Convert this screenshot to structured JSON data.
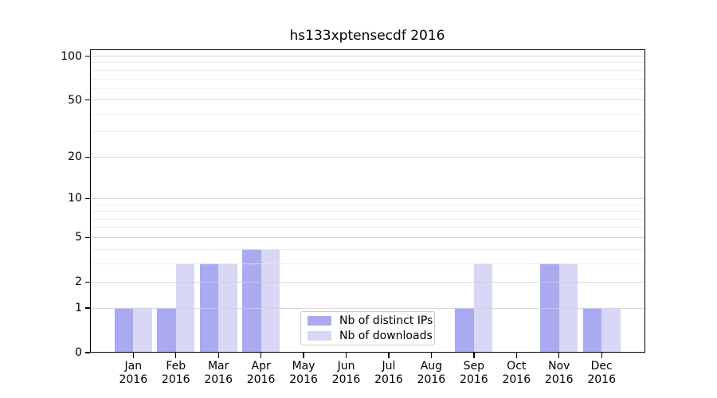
{
  "chart_data": {
    "type": "bar",
    "title": "hs133xptensecdf 2016",
    "x_categories": [
      "Jan 2016",
      "Feb 2016",
      "Mar 2016",
      "Apr 2016",
      "May 2016",
      "Jun 2016",
      "Jul 2016",
      "Aug 2016",
      "Sep 2016",
      "Oct 2016",
      "Nov 2016",
      "Dec 2016"
    ],
    "x_tick_top_labels": [
      "Jan",
      "Feb",
      "Mar",
      "Apr",
      "May",
      "Jun",
      "Jul",
      "Aug",
      "Sep",
      "Oct",
      "Nov",
      "Dec"
    ],
    "x_tick_bottom_label": "2016",
    "series": [
      {
        "name": "Nb of distinct IPs",
        "color": "#aaaaf0",
        "values": [
          1,
          1,
          3,
          4,
          0,
          0,
          0,
          0,
          1,
          0,
          3,
          1
        ]
      },
      {
        "name": "Nb of downloads",
        "color": "#d8d8f6",
        "values": [
          1,
          3,
          3,
          4,
          0,
          0,
          0,
          0,
          3,
          0,
          3,
          1
        ]
      }
    ],
    "y_axis": {
      "scale": "log1p",
      "major_ticks": [
        0,
        1,
        2,
        5,
        10,
        20,
        50,
        100
      ],
      "minor_gridlines": [
        3,
        4,
        6,
        7,
        8,
        9,
        30,
        40,
        60,
        70,
        80,
        90
      ],
      "ylim": [
        0,
        112
      ]
    },
    "legend": {
      "position": "lower center",
      "entries": [
        "Nb of distinct IPs",
        "Nb of downloads"
      ]
    },
    "grid": true,
    "colors": {
      "bar_distinct_ips": "#aaaaf0",
      "bar_downloads": "#d8d8f6",
      "grid_major": "#cfcfcf",
      "grid_minor": "#e9e9e9",
      "axis": "#000000",
      "background": "#ffffff"
    }
  }
}
